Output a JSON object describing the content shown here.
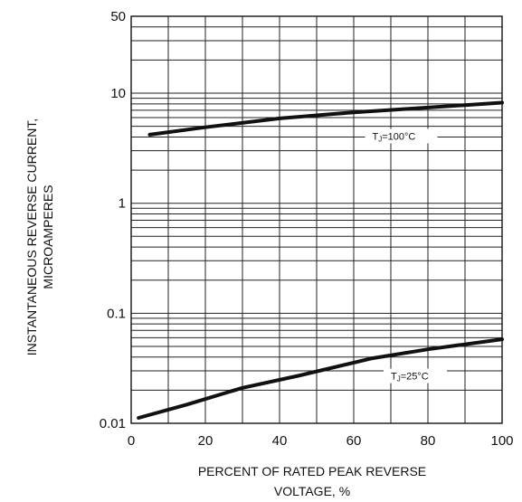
{
  "chart_data": {
    "type": "line",
    "title": "",
    "xlabel_lines": [
      "PERCENT OF RATED PEAK REVERSE",
      "VOLTAGE, %"
    ],
    "ylabel_lines": [
      "INSTANTANEOUS REVERSE CURRENT,",
      "MICROAMPERES"
    ],
    "xlim": [
      0,
      100
    ],
    "ylim": [
      0.01,
      50
    ],
    "yscale": "log",
    "grid": true,
    "x_ticks": [
      0,
      20,
      40,
      60,
      80,
      100
    ],
    "x_tick_labels": [
      "0",
      "20",
      "40",
      "60",
      "80",
      "100"
    ],
    "y_ticks": [
      0.01,
      0.1,
      1,
      10,
      50
    ],
    "y_tick_labels": [
      "0.01",
      "0.1",
      "1",
      "10",
      "50"
    ],
    "series": [
      {
        "label_prefix": "T",
        "label_sub": "J",
        "label_suffix": "=100°C",
        "x": [
          5,
          20,
          40,
          60,
          80,
          100
        ],
        "y": [
          4.2,
          4.9,
          5.9,
          6.7,
          7.4,
          8.2
        ]
      },
      {
        "label_prefix": "T",
        "label_sub": "J",
        "label_suffix": "=25°C",
        "x": [
          2,
          15,
          30,
          45,
          65,
          80,
          100
        ],
        "y": [
          0.0112,
          0.0148,
          0.021,
          0.027,
          0.039,
          0.047,
          0.058
        ]
      }
    ],
    "line_color": "#111111"
  }
}
